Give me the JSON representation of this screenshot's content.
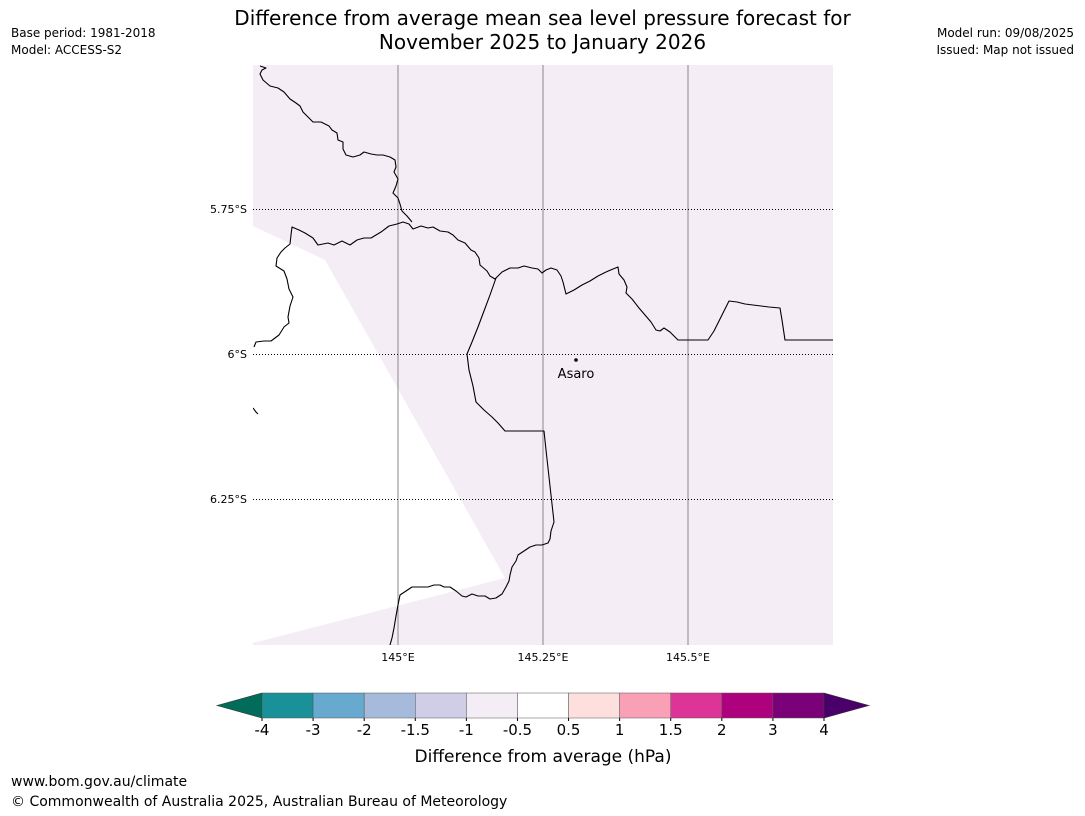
{
  "header": {
    "title_line1": "Difference from average mean sea level pressure forecast for",
    "title_line2": "November 2025 to January 2026",
    "base_period": "Base period: 1981-2018",
    "model": "Model: ACCESS-S2",
    "model_run": "Model run: 09/08/2025",
    "issued": "Issued: Map not issued"
  },
  "map": {
    "latitude_labels": [
      "5.75°S",
      "6°S",
      "6.25°S"
    ],
    "longitude_labels": [
      "145°E",
      "145.25°E",
      "145.5°E"
    ],
    "place": {
      "name": "Asaro"
    },
    "fill_color": "#f4edf5",
    "coastline_color": "#000000"
  },
  "colorbar": {
    "label": "Difference from average (hPa)",
    "ticks": [
      "-4",
      "-3",
      "-2",
      "-1.5",
      "-1",
      "-0.5",
      "0.5",
      "1",
      "1.5",
      "2",
      "3",
      "4"
    ],
    "colors": [
      "#1a9198",
      "#67a9cf",
      "#a6bbdc",
      "#cfcee6",
      "#f4edf5",
      "#ffffff",
      "#fde0dd",
      "#f99fb6",
      "#dd3497",
      "#ae017e",
      "#7a0177"
    ],
    "under_color": "#016c59",
    "over_color": "#49006a"
  },
  "footer": {
    "url": "www.bom.gov.au/climate",
    "copyright": "© Commonwealth of Australia 2025, Australian Bureau of Meteorology"
  }
}
